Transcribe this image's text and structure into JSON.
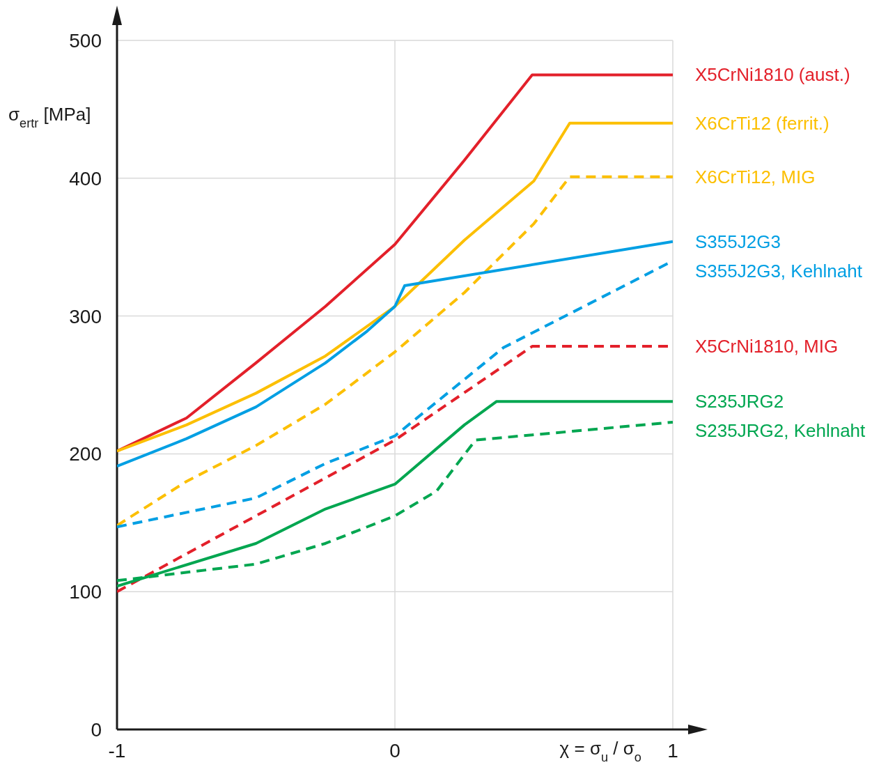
{
  "chart_data": {
    "type": "line",
    "ylabel": "σ$_{ertr}$ [MPa]",
    "xlabel": "χ = σ$_{u}$ / σ$_{o}$",
    "xlim": [
      -1,
      1
    ],
    "xticks": [
      -1,
      0,
      1
    ],
    "ylim": [
      0,
      500
    ],
    "yticks": [
      0,
      100,
      200,
      300,
      400,
      500
    ],
    "grid": true,
    "series": [
      {
        "name": "X5CrNi1810 (aust.)",
        "color": "#e3202a",
        "line_style": "solid",
        "x": [
          -1,
          -0.75,
          -0.5,
          -0.25,
          0,
          0.25,
          0.494,
          1
        ],
        "values": [
          202,
          226,
          266,
          307,
          352,
          413,
          475,
          475
        ]
      },
      {
        "name": "X6CrTi12 (ferrit.)",
        "color": "#fcbf00",
        "line_style": "solid",
        "x": [
          -1,
          -0.75,
          -0.5,
          -0.25,
          0,
          0.25,
          0.5,
          0.629,
          1
        ],
        "values": [
          202,
          221,
          244,
          271,
          307,
          355,
          398,
          440,
          440
        ]
      },
      {
        "name": "X6CrTi12, MIG",
        "color": "#fcbf00",
        "line_style": "dashed",
        "x": [
          -1,
          -0.75,
          -0.5,
          -0.25,
          0,
          0.25,
          0.5,
          0.629,
          1
        ],
        "values": [
          148,
          180,
          206,
          236,
          274,
          317,
          367,
          401,
          401
        ]
      },
      {
        "name": "S355J2G3",
        "color": "#009fe3",
        "line_style": "solid",
        "x": [
          -1,
          -0.75,
          -0.5,
          -0.25,
          -0.1,
          0,
          0.035,
          1
        ],
        "values": [
          191,
          211,
          234,
          266,
          289,
          307,
          322,
          354
        ]
      },
      {
        "name": "S355J2G3, Kehlnaht",
        "color": "#009fe3",
        "line_style": "dashed",
        "x": [
          -1,
          -0.5,
          -0.25,
          0,
          0.25,
          0.39,
          1
        ],
        "values": [
          147,
          168,
          193,
          213,
          254,
          277,
          340
        ]
      },
      {
        "name": "X5CrNi1810, MIG",
        "color": "#e3202a",
        "line_style": "dashed",
        "x": [
          -1,
          -0.5,
          0,
          0.494,
          1
        ],
        "values": [
          100,
          155,
          210,
          278,
          278
        ]
      },
      {
        "name": "S235JRG2",
        "color": "#00a650",
        "line_style": "solid",
        "x": [
          -1,
          -0.5,
          -0.25,
          0,
          0.25,
          0.366,
          1
        ],
        "values": [
          104,
          135,
          160,
          178,
          221,
          238,
          238
        ]
      },
      {
        "name": "S235JRG2, Kehlnaht",
        "color": "#00a650",
        "line_style": "dashed",
        "x": [
          -1,
          -0.5,
          -0.25,
          0,
          0.15,
          0.29,
          1
        ],
        "values": [
          108,
          120,
          135,
          155,
          173,
          210,
          223
        ]
      }
    ]
  }
}
